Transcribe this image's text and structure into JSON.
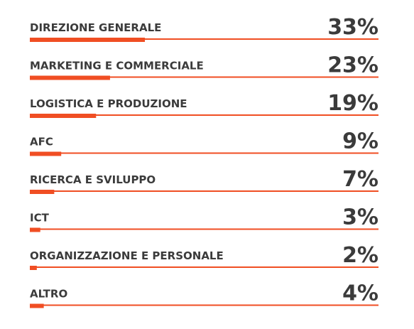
{
  "chart_data": {
    "type": "bar",
    "orientation": "horizontal",
    "categories": [
      "DIREZIONE GENERALE",
      "MARKETING E COMMERCIALE",
      "LOGISTICA E PRODUZIONE",
      "AFC",
      "RICERCA E SVILUPPO",
      "ICT",
      "ORGANIZZAZIONE E PERSONALE",
      "ALTRO"
    ],
    "values": [
      33,
      23,
      19,
      9,
      7,
      3,
      2,
      4
    ],
    "value_labels": [
      "33%",
      "23%",
      "19%",
      "9%",
      "7%",
      "3%",
      "2%",
      "4%"
    ],
    "unit": "%",
    "xlim": [
      0,
      100
    ],
    "title": "",
    "xlabel": "",
    "ylabel": "",
    "grid": false,
    "legend": "none",
    "colors": {
      "bar": "#f04e23",
      "track": "#f04e23",
      "text": "#3b3b3b",
      "background": "#ffffff"
    }
  }
}
